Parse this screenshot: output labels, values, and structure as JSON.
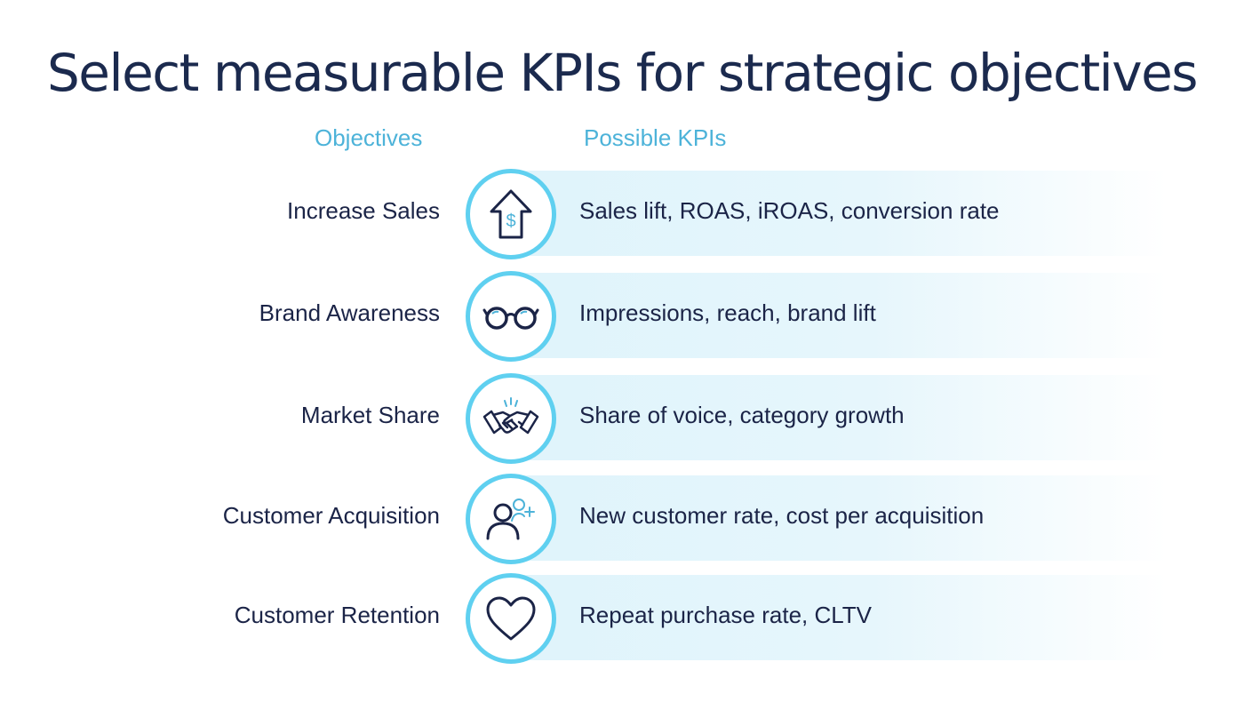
{
  "title": "Select measurable KPIs for strategic objectives",
  "headers": {
    "objectives": "Objectives",
    "kpis": "Possible KPIs"
  },
  "colors": {
    "title": "#1b2a4e",
    "header": "#4db3d9",
    "circle_border": "#5fd0f0",
    "band": "#dff4fb",
    "text": "#1b2447"
  },
  "rows": [
    {
      "objective": "Increase Sales",
      "kpis": "Sales lift, ROAS,  iROAS, conversion rate",
      "icon": "house-dollar-icon"
    },
    {
      "objective": "Brand Awareness",
      "kpis": "Impressions, reach, brand lift",
      "icon": "glasses-icon"
    },
    {
      "objective": "Market Share",
      "kpis": "Share of voice, category growth",
      "icon": "handshake-icon"
    },
    {
      "objective": "Customer Acquisition",
      "kpis": "New customer rate, cost per acquisition",
      "icon": "add-user-icon"
    },
    {
      "objective": "Customer Retention",
      "kpis": "Repeat purchase rate, CLTV",
      "icon": "heart-icon"
    }
  ]
}
